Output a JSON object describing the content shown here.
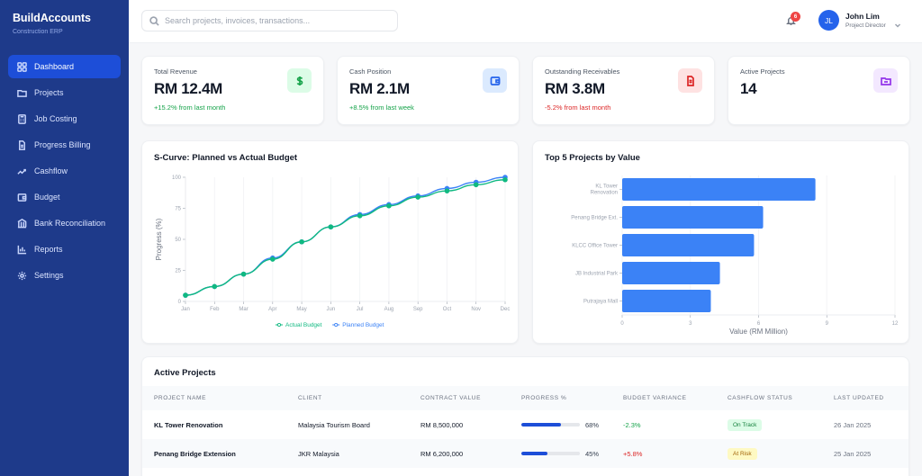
{
  "brand": {
    "title": "BuildAccounts",
    "subtitle": "Construction ERP"
  },
  "sidebar": {
    "items": [
      {
        "label": "Dashboard",
        "icon": "dashboard-grid-icon",
        "active": true
      },
      {
        "label": "Projects",
        "icon": "folder-icon",
        "active": false
      },
      {
        "label": "Job Costing",
        "icon": "calculator-icon",
        "active": false
      },
      {
        "label": "Progress Billing",
        "icon": "document-icon",
        "active": false
      },
      {
        "label": "Cashflow",
        "icon": "trending-up-icon",
        "active": false
      },
      {
        "label": "Budget",
        "icon": "wallet-icon",
        "active": false
      },
      {
        "label": "Bank Reconciliation",
        "icon": "bank-icon",
        "active": false
      },
      {
        "label": "Reports",
        "icon": "bar-chart-icon",
        "active": false
      },
      {
        "label": "Settings",
        "icon": "gear-icon",
        "active": false
      }
    ]
  },
  "header": {
    "search_placeholder": "Search projects, invoices, transactions...",
    "search_value": "",
    "notification_count": "6",
    "user": {
      "initials": "JL",
      "name": "John Lim",
      "role": "Project Director"
    }
  },
  "stats": [
    {
      "label": "Total Revenue",
      "value": "RM 12.4M",
      "delta": "+15.2% from last month",
      "trend": "pos",
      "icon": "dollar-icon",
      "icon_bg": "#dcfce7",
      "icon_color": "#16a34a"
    },
    {
      "label": "Cash Position",
      "value": "RM 2.1M",
      "delta": "+8.5% from last week",
      "trend": "pos",
      "icon": "wallet-icon",
      "icon_bg": "#dbeafe",
      "icon_color": "#2563eb"
    },
    {
      "label": "Outstanding Receivables",
      "value": "RM 3.8M",
      "delta": "-5.2% from last month",
      "trend": "neg",
      "icon": "invoice-icon",
      "icon_bg": "#fee2e2",
      "icon_color": "#dc2626"
    },
    {
      "label": "Active Projects",
      "value": "14",
      "delta": "",
      "trend": "none",
      "icon": "folder-icon",
      "icon_bg": "#f3e8ff",
      "icon_color": "#9333ea"
    }
  ],
  "chart_data": [
    {
      "type": "line",
      "title": "S-Curve: Planned vs Actual Budget",
      "xlabel": "",
      "ylabel": "Progress (%)",
      "ylim": [
        0,
        100
      ],
      "yticks": [
        0,
        25,
        50,
        75,
        100
      ],
      "grid": true,
      "legend_position": "bottom",
      "categories": [
        "Jan",
        "Feb",
        "Mar",
        "Apr",
        "May",
        "Jun",
        "Jul",
        "Aug",
        "Sep",
        "Oct",
        "Nov",
        "Dec"
      ],
      "series": [
        {
          "name": "Actual Budget",
          "color": "#10b981",
          "values": [
            5,
            12,
            22,
            34,
            48,
            60,
            69,
            77,
            84,
            89,
            94,
            98
          ]
        },
        {
          "name": "Planned Budget",
          "color": "#3b82f6",
          "values": [
            5,
            12,
            22,
            35,
            48,
            60,
            70,
            78,
            85,
            91,
            96,
            100
          ]
        }
      ]
    },
    {
      "type": "bar",
      "orientation": "horizontal",
      "title": "Top 5 Projects by Value",
      "xlabel": "Value (RM Million)",
      "ylabel": "",
      "xlim": [
        0,
        12
      ],
      "xticks": [
        0,
        3,
        6,
        9,
        12
      ],
      "grid": true,
      "categories": [
        "KL Tower Renovation",
        "Penang Bridge Ext.",
        "KLCC Office Tower",
        "JB Industrial Park",
        "Putrajaya Mall"
      ],
      "values": [
        8.5,
        6.2,
        5.8,
        4.3,
        3.9
      ],
      "color": "#3b82f6"
    }
  ],
  "table": {
    "title": "Active Projects",
    "columns": [
      "PROJECT NAME",
      "CLIENT",
      "CONTRACT VALUE",
      "PROGRESS %",
      "BUDGET VARIANCE",
      "CASHFLOW STATUS",
      "LAST UPDATED"
    ],
    "rows": [
      {
        "name": "KL Tower Renovation",
        "client": "Malaysia Tourism Board",
        "contract": "RM 8,500,000",
        "progress": 68,
        "progress_label": "68%",
        "variance": "-2.3%",
        "variance_trend": "pos",
        "status": "On Track",
        "status_kind": "ontrack",
        "updated": "26 Jan 2025"
      },
      {
        "name": "Penang Bridge Extension",
        "client": "JKR Malaysia",
        "contract": "RM 6,200,000",
        "progress": 45,
        "progress_label": "45%",
        "variance": "+5.8%",
        "variance_trend": "neg",
        "status": "At Risk",
        "status_kind": "atrisk",
        "updated": "25 Jan 2025"
      }
    ]
  }
}
